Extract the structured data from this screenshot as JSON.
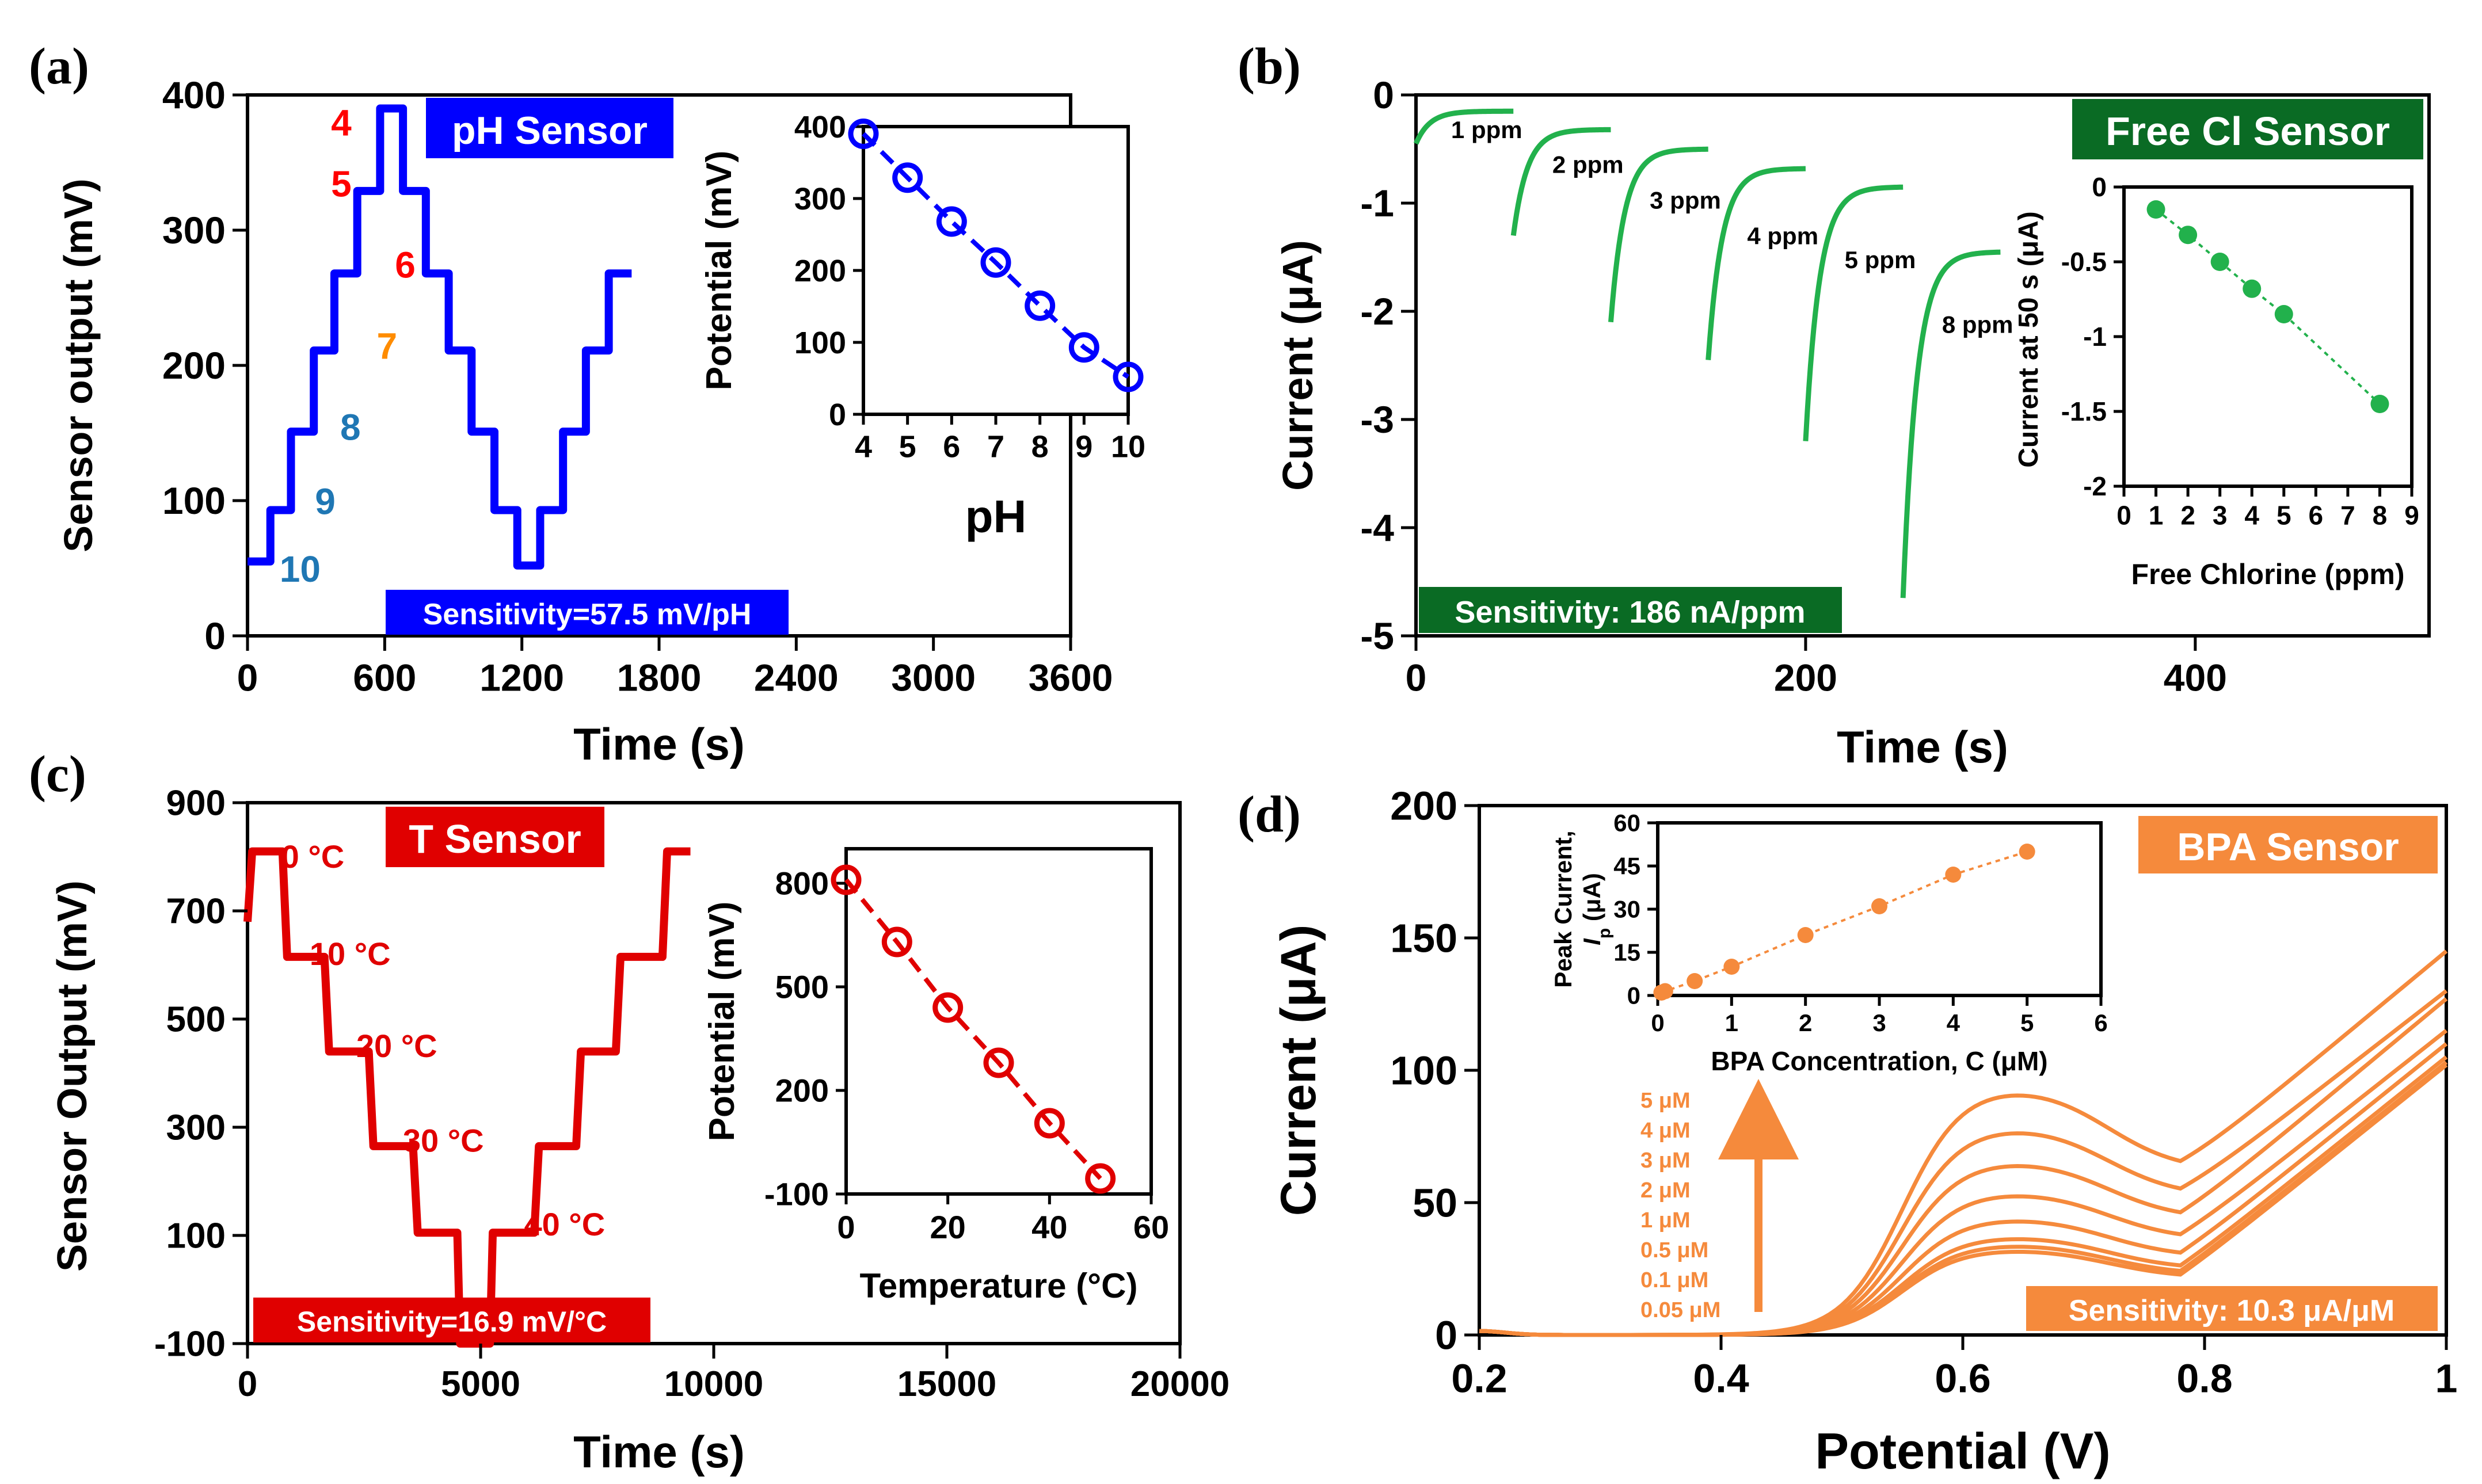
{
  "panels": [
    {
      "label": "(a)",
      "badge": "pH Sensor",
      "badge_color": "#0000ff",
      "sensitivity": "Sensitivity=57.5 mV/pH",
      "color": "#0000ff",
      "xlabel": "Time (s)",
      "ylabel": "Sensor output (mV)",
      "annotations": [
        {
          "text": "4",
          "x": 410,
          "y": 370,
          "color": "#ff0000"
        },
        {
          "text": "5",
          "x": 410,
          "y": 325,
          "color": "#ff0000"
        },
        {
          "text": "6",
          "x": 690,
          "y": 265,
          "color": "#ff0000"
        },
        {
          "text": "7",
          "x": 610,
          "y": 205,
          "color": "#ff8c00"
        },
        {
          "text": "8",
          "x": 450,
          "y": 145,
          "color": "#1f77b4"
        },
        {
          "text": "9",
          "x": 340,
          "y": 90,
          "color": "#1f77b4"
        },
        {
          "text": "10",
          "x": 230,
          "y": 40,
          "color": "#1f77b4"
        }
      ],
      "inset": {
        "xlabel": "pH",
        "ylabel": "Potential (mV)"
      }
    },
    {
      "label": "(b)",
      "badge": "Free Cl Sensor",
      "badge_color": "#0a6b24",
      "sensitivity": "Sensitivity: 186 nA/ppm",
      "color": "#22b14c",
      "xlabel": "Time (s)",
      "ylabel": "Current (μA)",
      "annotations": [
        {
          "text": "1 ppm",
          "x": 18,
          "y": -0.4
        },
        {
          "text": "2 ppm",
          "x": 70,
          "y": -0.72
        },
        {
          "text": "3 ppm",
          "x": 120,
          "y": -1.05
        },
        {
          "text": "4 ppm",
          "x": 170,
          "y": -1.38
        },
        {
          "text": "5 ppm",
          "x": 220,
          "y": -1.6
        },
        {
          "text": "8 ppm",
          "x": 270,
          "y": -2.2
        }
      ],
      "inset": {
        "xlabel": "Free Chlorine (ppm)",
        "ylabel": "Current at 50 s (μA)"
      }
    },
    {
      "label": "(c)",
      "badge": "T Sensor",
      "badge_color": "#e00000",
      "sensitivity": "Sensitivity=16.9 mV/°C",
      "color": "#e00000",
      "xlabel": "Time (s)",
      "ylabel": "Sensor Output (mV)",
      "annotations": [
        {
          "text": "0 °C",
          "x": 1400,
          "y": 780
        },
        {
          "text": "10 °C",
          "x": 2200,
          "y": 600
        },
        {
          "text": "20 °C",
          "x": 3200,
          "y": 430
        },
        {
          "text": "30 °C",
          "x": 4200,
          "y": 255
        },
        {
          "text": "40 °C",
          "x": 6800,
          "y": 100
        }
      ],
      "inset": {
        "xlabel": "Temperature (°C)",
        "ylabel": "Potential (mV)"
      }
    },
    {
      "label": "(d)",
      "badge": "BPA Sensor",
      "badge_color": "#f58a3c",
      "sensitivity": "Sensitivity: 10.3 μA/μM",
      "color": "#f58a3c",
      "xlabel": "Potential (V)",
      "ylabel": "Current (μA)",
      "concentration_labels": [
        "5 μM",
        "4 μM",
        "3 μM",
        "2 μM",
        "1 μM",
        "0.5 μM",
        "0.1 μM",
        "0.05 μM"
      ],
      "inset": {
        "xlabel": "BPA Concentration, C (μM)",
        "ylabel_line1": "Peak Current,",
        "ylabel_line2_main": "I",
        "ylabel_line2_sub": "p",
        "ylabel_line2_unit": " (μA)"
      }
    }
  ],
  "chart_data": [
    {
      "type": "line",
      "title": "",
      "xlabel": "Time (s)",
      "ylabel": "Sensor output (mV)",
      "xlim": [
        0,
        3600
      ],
      "ylim": [
        0,
        400
      ],
      "xticks": [
        0,
        600,
        1200,
        1800,
        2400,
        3000,
        3600
      ],
      "yticks": [
        0,
        100,
        200,
        300,
        400
      ],
      "series": [
        {
          "x": [
            0,
            100,
            100,
            190,
            190,
            290,
            290,
            380,
            380,
            480,
            480,
            580,
            580,
            680,
            680,
            780,
            780,
            880,
            880,
            980,
            980,
            1080,
            1080,
            1180,
            1180,
            1280,
            1280,
            1380,
            1380,
            1480,
            1480,
            1580,
            1580,
            1680
          ],
          "y": [
            55,
            55,
            93,
            93,
            151,
            151,
            211,
            211,
            268,
            268,
            329,
            329,
            390,
            390,
            329,
            329,
            268,
            268,
            211,
            211,
            151,
            151,
            93,
            93,
            52,
            52,
            93,
            93,
            151,
            151,
            211,
            211,
            268,
            268
          ]
        }
      ],
      "inset": {
        "type": "scatter",
        "xlabel": "pH",
        "ylabel": "Potential (mV)",
        "xlim": [
          4,
          10
        ],
        "ylim": [
          0,
          400
        ],
        "xticks": [
          4,
          5,
          6,
          7,
          8,
          9,
          10
        ],
        "yticks": [
          0,
          100,
          200,
          300,
          400
        ],
        "x": [
          4,
          5,
          6,
          7,
          8,
          9,
          10
        ],
        "y": [
          390,
          329,
          268,
          211,
          151,
          93,
          52
        ]
      }
    },
    {
      "type": "line",
      "title": "",
      "xlabel": "Time (s)",
      "ylabel": "Current (μA)",
      "xlim": [
        0,
        520
      ],
      "ylim": [
        -5,
        0
      ],
      "xticks": [
        0,
        200,
        400
      ],
      "yticks": [
        0,
        -1,
        -2,
        -3,
        -4,
        -5
      ],
      "series": [
        {
          "start": 0,
          "end": 50,
          "min": -0.45,
          "final": -0.15
        },
        {
          "start": 50,
          "end": 100,
          "min": -1.3,
          "final": -0.32
        },
        {
          "start": 100,
          "end": 150,
          "min": -2.1,
          "final": -0.5
        },
        {
          "start": 150,
          "end": 200,
          "min": -2.45,
          "final": -0.68
        },
        {
          "start": 200,
          "end": 250,
          "min": -3.2,
          "final": -0.85
        },
        {
          "start": 250,
          "end": 300,
          "min": -4.65,
          "final": -1.45
        }
      ],
      "inset": {
        "type": "scatter",
        "xlabel": "Free Chlorine (ppm)",
        "ylabel": "Current at 50 s (μA)",
        "xlim": [
          0,
          9
        ],
        "ylim": [
          -2,
          0
        ],
        "xticks": [
          0,
          1,
          2,
          3,
          4,
          5,
          6,
          7,
          8,
          9
        ],
        "yticks": [
          0,
          -0.5,
          -1,
          -1.5,
          -2
        ],
        "x": [
          1,
          2,
          3,
          4,
          5,
          8
        ],
        "y": [
          -0.15,
          -0.32,
          -0.5,
          -0.68,
          -0.85,
          -1.45
        ]
      }
    },
    {
      "type": "line",
      "title": "",
      "xlabel": "Time (s)",
      "ylabel": "Sensor Output (mV)",
      "xlim": [
        0,
        20000
      ],
      "ylim": [
        -100,
        900
      ],
      "xticks": [
        0,
        5000,
        10000,
        15000,
        20000
      ],
      "yticks": [
        -100,
        100,
        300,
        500,
        700,
        900
      ],
      "series": [
        {
          "x": [
            0,
            100,
            100,
            750,
            850,
            1650,
            1750,
            2600,
            2700,
            3550,
            3650,
            4500,
            4560,
            5200,
            5260,
            6150,
            6250,
            7050,
            7150,
            7900,
            8000,
            8900,
            9000,
            9500
          ],
          "y": [
            680,
            810,
            810,
            810,
            615,
            615,
            440,
            440,
            265,
            265,
            105,
            105,
            -100,
            -100,
            105,
            105,
            265,
            265,
            440,
            440,
            615,
            615,
            810,
            810
          ]
        }
      ],
      "inset": {
        "type": "scatter",
        "xlabel": "Temperature (°C)",
        "ylabel": "Potential (mV)",
        "xlim": [
          0,
          60
        ],
        "ylim": [
          -100,
          900
        ],
        "xticks": [
          0,
          20,
          40,
          60
        ],
        "yticks": [
          -100,
          200,
          500,
          800
        ],
        "x": [
          0,
          10,
          20,
          30,
          40,
          50
        ],
        "y": [
          810,
          630,
          440,
          280,
          105,
          -55
        ]
      }
    },
    {
      "type": "line",
      "title": "",
      "xlabel": "Potential (V)",
      "ylabel": "Current (μA)",
      "xlim": [
        0.2,
        1.0
      ],
      "ylim": [
        0,
        200
      ],
      "xticks": [
        0.2,
        0.4,
        0.6,
        0.8,
        1.0
      ],
      "yticks": [
        0,
        50,
        100,
        150,
        200
      ],
      "series": [
        {
          "name": "5 μM",
          "peak": 95,
          "end": 145
        },
        {
          "name": "4 μM",
          "peak": 80,
          "end": 130
        },
        {
          "name": "3 μM",
          "peak": 67,
          "end": 127
        },
        {
          "name": "2 μM",
          "peak": 55,
          "end": 115
        },
        {
          "name": "1 μM",
          "peak": 45,
          "end": 110
        },
        {
          "name": "0.5 μM",
          "peak": 38,
          "end": 105
        },
        {
          "name": "0.1 μM",
          "peak": 35,
          "end": 103
        },
        {
          "name": "0.05 μM",
          "peak": 33,
          "end": 102
        }
      ],
      "inset": {
        "type": "scatter",
        "xlabel": "BPA Concentration, C (μM)",
        "ylabel": "Peak Current, Ip (μA)",
        "xlim": [
          0,
          6
        ],
        "ylim": [
          0,
          60
        ],
        "xticks": [
          0,
          1,
          2,
          3,
          4,
          5,
          6
        ],
        "yticks": [
          0,
          15,
          30,
          45,
          60
        ],
        "x": [
          0.05,
          0.1,
          0.5,
          1,
          2,
          3,
          4,
          5
        ],
        "y": [
          1,
          1.5,
          5,
          10,
          21,
          31,
          42,
          50
        ]
      }
    }
  ]
}
